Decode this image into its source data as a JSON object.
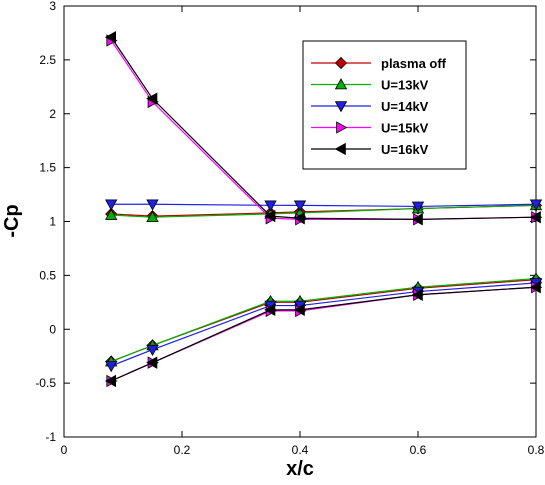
{
  "chart_data": {
    "type": "line",
    "title": "",
    "xlabel": "x/c",
    "ylabel": "-Cp",
    "xlim": [
      0,
      0.8
    ],
    "ylim": [
      -1,
      3
    ],
    "xticks": [
      0,
      0.2,
      0.4,
      0.6,
      0.8
    ],
    "xtick_labels": [
      "0",
      "0.2",
      "0.4",
      "0.6",
      "0.8"
    ],
    "yticks": [
      -1,
      -0.5,
      0,
      0.5,
      1,
      1.5,
      2,
      2.5,
      3
    ],
    "ytick_labels": [
      "-1",
      "-0.5",
      "0",
      "0.5",
      "1",
      "1.5",
      "2",
      "2.5",
      "3"
    ],
    "grid": false,
    "legend_position": "top-right",
    "series": [
      {
        "name": "plasma off",
        "color": "#c00000",
        "marker": "diamond",
        "upper": {
          "x": [
            0.08,
            0.15,
            0.35,
            0.4,
            0.6,
            0.8
          ],
          "y": [
            1.07,
            1.05,
            1.08,
            1.09,
            1.12,
            1.15
          ]
        },
        "lower": {
          "x": [
            0.08,
            0.15,
            0.35,
            0.4,
            0.6,
            0.8
          ],
          "y": [
            -0.3,
            -0.15,
            0.25,
            0.25,
            0.38,
            0.46
          ]
        }
      },
      {
        "name": "U=13kV",
        "color": "#00b000",
        "marker": "triangle-up",
        "upper": {
          "x": [
            0.08,
            0.15,
            0.35,
            0.4,
            0.6,
            0.8
          ],
          "y": [
            1.06,
            1.04,
            1.07,
            1.08,
            1.12,
            1.15
          ]
        },
        "lower": {
          "x": [
            0.08,
            0.15,
            0.35,
            0.4,
            0.6,
            0.8
          ],
          "y": [
            -0.3,
            -0.15,
            0.26,
            0.26,
            0.39,
            0.47
          ]
        }
      },
      {
        "name": "U=14kV",
        "color": "#2020e0",
        "marker": "triangle-down",
        "upper": {
          "x": [
            0.08,
            0.15,
            0.35,
            0.4,
            0.6,
            0.8
          ],
          "y": [
            1.16,
            1.16,
            1.15,
            1.15,
            1.14,
            1.16
          ]
        },
        "lower": {
          "x": [
            0.08,
            0.15,
            0.35,
            0.4,
            0.6,
            0.8
          ],
          "y": [
            -0.34,
            -0.19,
            0.22,
            0.22,
            0.35,
            0.43
          ]
        }
      },
      {
        "name": "U=15kV",
        "color": "#ff00ff",
        "marker": "triangle-right",
        "upper": {
          "x": [
            0.08,
            0.15,
            0.35,
            0.4,
            0.6,
            0.8
          ],
          "y": [
            2.68,
            2.11,
            1.03,
            1.02,
            1.02,
            1.04
          ]
        },
        "lower": {
          "x": [
            0.08,
            0.15,
            0.35,
            0.4,
            0.6,
            0.8
          ],
          "y": [
            -0.48,
            -0.31,
            0.17,
            0.17,
            0.32,
            0.39
          ]
        }
      },
      {
        "name": "U=16kV",
        "color": "#000000",
        "marker": "triangle-left",
        "upper": {
          "x": [
            0.08,
            0.15,
            0.35,
            0.4,
            0.6,
            0.8
          ],
          "y": [
            2.71,
            2.14,
            1.05,
            1.03,
            1.02,
            1.04
          ]
        },
        "lower": {
          "x": [
            0.08,
            0.15,
            0.35,
            0.4,
            0.6,
            0.8
          ],
          "y": [
            -0.48,
            -0.31,
            0.18,
            0.18,
            0.32,
            0.39
          ]
        }
      }
    ]
  }
}
